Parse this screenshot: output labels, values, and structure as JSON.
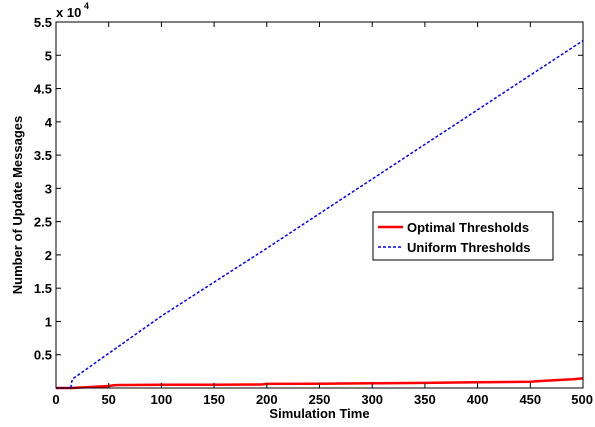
{
  "chart_data": {
    "type": "line",
    "title": "",
    "xlabel": "Simulation Time",
    "ylabel": "Number of Update Messages",
    "y_multiplier_label": "x 10",
    "y_multiplier_exponent": "4",
    "xlim": [
      0,
      500
    ],
    "ylim": [
      0,
      55000
    ],
    "x_ticks": [
      0,
      50,
      100,
      150,
      200,
      250,
      300,
      350,
      400,
      450,
      500
    ],
    "x_tick_labels": [
      "0",
      "50",
      "100",
      "150",
      "200",
      "250",
      "300",
      "350",
      "400",
      "450",
      "500"
    ],
    "y_ticks": [
      5000,
      10000,
      15000,
      20000,
      25000,
      30000,
      35000,
      40000,
      45000,
      50000,
      55000
    ],
    "y_tick_labels": [
      "0.5",
      "1",
      "1.5",
      "2",
      "2.5",
      "3",
      "3.5",
      "4",
      "4.5",
      "5",
      "5.5"
    ],
    "grid": false,
    "legend_position": "right",
    "series": [
      {
        "name": "Optimal Thresholds",
        "color": "#ff0000",
        "style": "solid",
        "x": [
          0,
          15,
          50,
          55,
          60,
          100,
          150,
          195,
          200,
          250,
          300,
          350,
          400,
          450,
          460,
          490,
          500
        ],
        "y": [
          0,
          0,
          300,
          400,
          450,
          480,
          500,
          520,
          620,
          650,
          700,
          760,
          850,
          950,
          1050,
          1300,
          1450
        ]
      },
      {
        "name": "Uniform Thresholds",
        "color": "#0000ff",
        "style": "dashed",
        "x": [
          0,
          14,
          15,
          16,
          100,
          200,
          300,
          400,
          500
        ],
        "y": [
          0,
          0,
          1000,
          1400,
          10800,
          21000,
          31400,
          41800,
          52200
        ]
      }
    ]
  }
}
